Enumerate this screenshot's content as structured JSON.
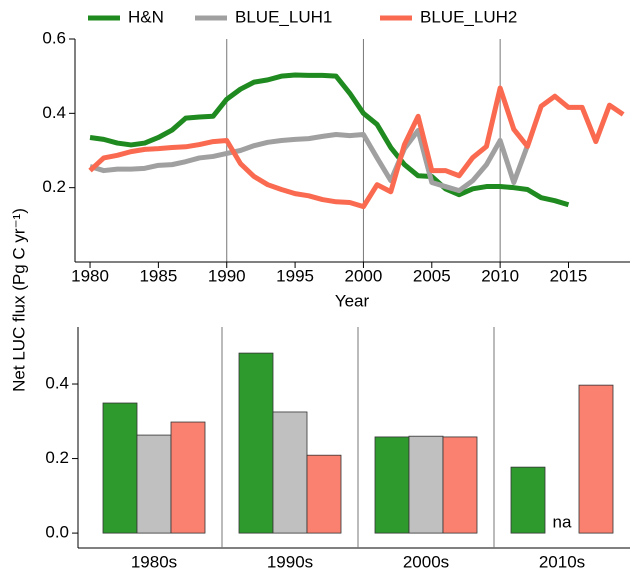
{
  "chart_data": [
    {
      "type": "line",
      "ylabel": "Net LUC flux  (Pg C yr⁻¹)",
      "xlabel": "Year",
      "xlim": [
        1978.9,
        2019.5
      ],
      "xticks": [
        1980,
        1985,
        1990,
        1995,
        2000,
        2005,
        2010,
        2015
      ],
      "ylim": [
        0,
        0.6
      ],
      "yticks": [
        0.2,
        0.4,
        0.6
      ],
      "vlines": [
        1990,
        2000,
        2010
      ],
      "legend": "top",
      "series": [
        {
          "name": "H&N",
          "color": "#1f8a1f",
          "x": [
            1980,
            1981,
            1982,
            1983,
            1984,
            1985,
            1986,
            1987,
            1988,
            1989,
            1990,
            1991,
            1992,
            1993,
            1994,
            1995,
            1996,
            1997,
            1998,
            1999,
            2000,
            2001,
            2002,
            2003,
            2004,
            2005,
            2006,
            2007,
            2008,
            2009,
            2010,
            2011,
            2012,
            2013,
            2014,
            2015
          ],
          "values": [
            0.335,
            0.33,
            0.32,
            0.315,
            0.32,
            0.335,
            0.355,
            0.387,
            0.39,
            0.392,
            0.438,
            0.465,
            0.484,
            0.49,
            0.5,
            0.503,
            0.502,
            0.502,
            0.5,
            0.454,
            0.4,
            0.37,
            0.308,
            0.262,
            0.232,
            0.23,
            0.197,
            0.181,
            0.197,
            0.203,
            0.203,
            0.2,
            0.195,
            0.173,
            0.165,
            0.154
          ]
        },
        {
          "name": "BLUE_LUH1",
          "color": "#a0a0a0",
          "x": [
            1980,
            1981,
            1982,
            1983,
            1984,
            1985,
            1986,
            1987,
            1988,
            1989,
            1990,
            1991,
            1992,
            1993,
            1994,
            1995,
            1996,
            1997,
            1998,
            1999,
            2000,
            2001,
            2002,
            2003,
            2004,
            2005,
            2006,
            2007,
            2008,
            2009,
            2010,
            2011,
            2012
          ],
          "values": [
            0.257,
            0.246,
            0.25,
            0.25,
            0.252,
            0.26,
            0.262,
            0.27,
            0.28,
            0.284,
            0.292,
            0.3,
            0.313,
            0.322,
            0.327,
            0.33,
            0.332,
            0.338,
            0.343,
            0.34,
            0.343,
            0.28,
            0.219,
            0.305,
            0.354,
            0.214,
            0.203,
            0.192,
            0.219,
            0.262,
            0.327,
            0.214,
            0.313
          ]
        },
        {
          "name": "BLUE_LUH2",
          "color": "#fa6a50",
          "x": [
            1980,
            1981,
            1982,
            1983,
            1984,
            1985,
            1986,
            1987,
            1988,
            1989,
            1990,
            1991,
            1992,
            1993,
            1994,
            1995,
            1996,
            1997,
            1998,
            1999,
            2000,
            2001,
            2002,
            2003,
            2004,
            2005,
            2006,
            2007,
            2008,
            2009,
            2010,
            2011,
            2012,
            2013,
            2014,
            2015,
            2016,
            2017,
            2018,
            2019
          ],
          "values": [
            0.246,
            0.28,
            0.287,
            0.297,
            0.303,
            0.305,
            0.308,
            0.31,
            0.316,
            0.324,
            0.327,
            0.265,
            0.23,
            0.208,
            0.195,
            0.184,
            0.178,
            0.168,
            0.162,
            0.16,
            0.149,
            0.208,
            0.189,
            0.316,
            0.392,
            0.246,
            0.246,
            0.232,
            0.281,
            0.311,
            0.468,
            0.357,
            0.311,
            0.419,
            0.446,
            0.416,
            0.416,
            0.324,
            0.422,
            0.397
          ]
        }
      ]
    },
    {
      "type": "bar",
      "categories": [
        "1980s",
        "1990s",
        "2000s",
        "2010s"
      ],
      "ylim": [
        -0.04,
        0.553
      ],
      "yticks": [
        {
          "value": 0,
          "label": "0.0"
        },
        0.2,
        0.4
      ],
      "series": [
        {
          "name": "H&N",
          "color": "#2e9a2e",
          "values": [
            0.349,
            0.483,
            0.258,
            0.177
          ]
        },
        {
          "name": "BLUE_LUH1",
          "color": "#c0c0c0",
          "values": [
            0.263,
            0.325,
            0.26,
            null
          ],
          "value_labels": [
            null,
            null,
            null,
            "na"
          ]
        },
        {
          "name": "BLUE_LUH2",
          "color": "#fa8070",
          "values": [
            0.298,
            0.209,
            0.258,
            0.397
          ]
        }
      ]
    }
  ]
}
